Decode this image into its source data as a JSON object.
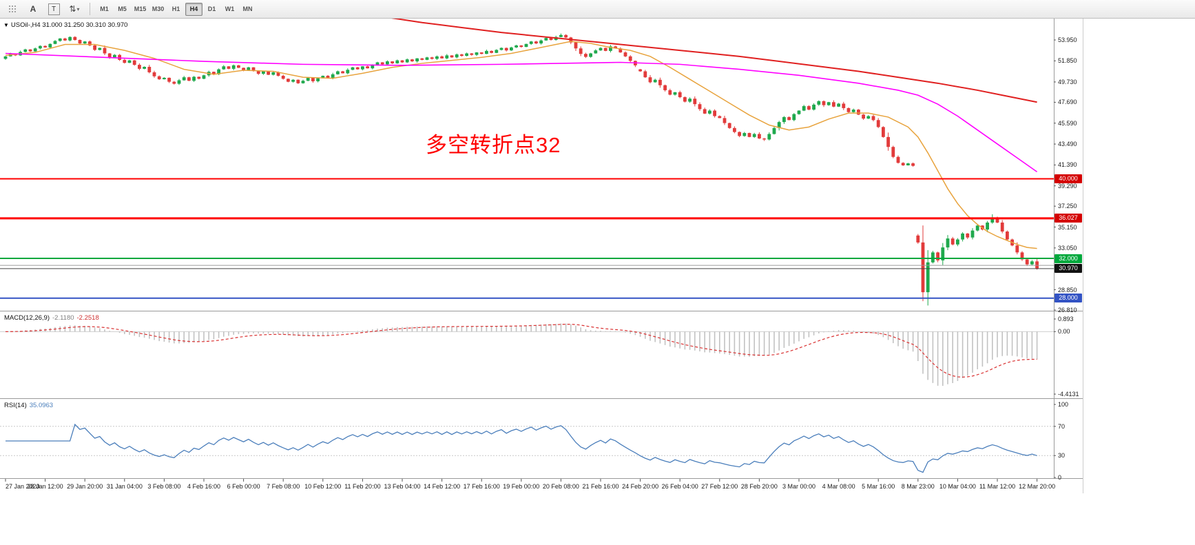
{
  "toolbar": {
    "font_tool_label": "A",
    "text_tool_label": "T",
    "cycle_tool_glyph": "⇅",
    "caret_glyph": "▾",
    "timeframes": [
      {
        "label": "M1",
        "active": false
      },
      {
        "label": "M5",
        "active": false
      },
      {
        "label": "M15",
        "active": false
      },
      {
        "label": "M30",
        "active": false
      },
      {
        "label": "H1",
        "active": false
      },
      {
        "label": "H4",
        "active": true
      },
      {
        "label": "D1",
        "active": false
      },
      {
        "label": "W1",
        "active": false
      },
      {
        "label": "MN",
        "active": false
      }
    ]
  },
  "chart": {
    "dropdown_glyph": "▼",
    "symbol_line": "USOil-,H4 31.000 31.250 30.310 30.970",
    "annotation": {
      "text": "多空转折点32",
      "color": "#ff0000"
    }
  },
  "indicators": {
    "macd": {
      "name": "MACD(12,26,9)",
      "value_main": "-2.1180",
      "value_signal": "-2.2518"
    },
    "rsi": {
      "name": "RSI(14)",
      "value": "35.0963"
    }
  },
  "chart_data": {
    "type": "candlestick",
    "symbol": "USOil",
    "timeframe": "H4",
    "colors": {
      "bull": "#1fa94d",
      "bear": "#e23b3b",
      "macd_hist": "#c2c2c2",
      "macd_signal": "#d93030",
      "rsi_line": "#4a7ebb"
    },
    "closes": [
      52.3,
      52.55,
      52.4,
      52.75,
      53.0,
      52.8,
      53.1,
      53.35,
      53.2,
      53.55,
      53.85,
      54.1,
      53.9,
      54.25,
      53.95,
      53.6,
      53.8,
      53.4,
      52.95,
      53.15,
      52.6,
      52.2,
      52.45,
      51.95,
      51.65,
      51.9,
      51.45,
      51.05,
      51.25,
      50.7,
      50.3,
      50.0,
      50.15,
      49.75,
      49.55,
      49.9,
      50.2,
      49.85,
      50.25,
      50.05,
      50.4,
      50.75,
      50.5,
      51.0,
      51.3,
      51.05,
      51.4,
      51.15,
      50.9,
      51.2,
      50.85,
      50.55,
      50.8,
      50.45,
      50.7,
      50.35,
      50.05,
      49.75,
      49.95,
      49.6,
      49.85,
      50.15,
      49.8,
      50.1,
      50.35,
      50.15,
      50.5,
      50.8,
      50.6,
      50.95,
      51.2,
      51.0,
      51.3,
      51.1,
      51.45,
      51.7,
      51.5,
      51.8,
      51.6,
      51.9,
      51.7,
      52.0,
      51.8,
      52.1,
      51.95,
      52.2,
      52.05,
      52.3,
      52.1,
      52.4,
      52.2,
      52.5,
      52.35,
      52.6,
      52.45,
      52.7,
      52.55,
      52.85,
      52.65,
      52.95,
      53.15,
      52.9,
      53.2,
      53.4,
      53.25,
      53.55,
      53.8,
      53.6,
      53.9,
      54.15,
      53.95,
      54.25,
      54.45,
      54.2,
      53.7,
      53.1,
      52.55,
      52.25,
      52.6,
      52.9,
      53.15,
      52.85,
      53.3,
      53.1,
      52.7,
      52.3,
      51.85,
      51.4,
      50.8,
      50.2,
      49.7,
      49.95,
      49.4,
      48.9,
      48.45,
      48.7,
      48.2,
      47.75,
      48.05,
      47.5,
      47.0,
      46.55,
      46.85,
      46.3,
      46.1,
      45.6,
      45.1,
      44.7,
      44.3,
      44.6,
      44.2,
      44.5,
      44.05,
      43.95,
      44.5,
      45.1,
      45.7,
      46.2,
      45.9,
      46.5,
      46.85,
      47.3,
      46.95,
      47.45,
      47.8,
      47.4,
      47.7,
      47.25,
      47.55,
      47.1,
      46.7,
      46.95,
      46.45,
      46.05,
      46.3,
      45.9,
      45.2,
      44.2,
      43.2,
      42.2,
      41.6,
      41.35,
      41.55,
      41.3,
      33.6,
      28.6,
      31.6,
      32.6,
      31.8,
      33.1,
      34.0,
      33.4,
      33.9,
      34.5,
      34.1,
      34.8,
      35.3,
      34.9,
      35.6,
      36.1,
      35.6,
      34.7,
      33.9,
      33.3,
      32.6,
      31.9,
      31.4,
      31.7,
      30.97
    ],
    "open_overrides": {
      "128": 51.0,
      "184": 34.3
    },
    "high_overrides": {
      "112": 54.6,
      "199": 36.43
    },
    "low_overrides": {
      "153": 43.8,
      "185": 27.7
    },
    "ma_lines": [
      {
        "name": "ma-fast-orange",
        "color": "#e8a33d",
        "width": 1.5,
        "points": [
          [
            0,
            52.4
          ],
          [
            6,
            52.7
          ],
          [
            12,
            53.5
          ],
          [
            18,
            53.5
          ],
          [
            24,
            52.9
          ],
          [
            30,
            52.1
          ],
          [
            36,
            51.0
          ],
          [
            42,
            50.5
          ],
          [
            48,
            50.9
          ],
          [
            54,
            50.8
          ],
          [
            60,
            50.2
          ],
          [
            66,
            50.1
          ],
          [
            72,
            50.6
          ],
          [
            78,
            51.2
          ],
          [
            84,
            51.6
          ],
          [
            90,
            51.9
          ],
          [
            96,
            52.2
          ],
          [
            102,
            52.6
          ],
          [
            108,
            53.2
          ],
          [
            114,
            53.8
          ],
          [
            118,
            53.6
          ],
          [
            122,
            53.2
          ],
          [
            126,
            52.9
          ],
          [
            130,
            52.3
          ],
          [
            134,
            51.2
          ],
          [
            138,
            50.0
          ],
          [
            142,
            48.8
          ],
          [
            146,
            47.6
          ],
          [
            150,
            46.4
          ],
          [
            154,
            45.4
          ],
          [
            158,
            44.9
          ],
          [
            162,
            45.2
          ],
          [
            166,
            46.0
          ],
          [
            170,
            46.6
          ],
          [
            174,
            46.6
          ],
          [
            178,
            46.2
          ],
          [
            182,
            45.2
          ],
          [
            184,
            44.2
          ],
          [
            186,
            42.6
          ],
          [
            188,
            40.8
          ],
          [
            190,
            39.0
          ],
          [
            192,
            37.5
          ],
          [
            194,
            36.3
          ],
          [
            196,
            35.4
          ],
          [
            198,
            34.7
          ],
          [
            200,
            34.2
          ],
          [
            202,
            33.8
          ],
          [
            204,
            33.4
          ],
          [
            206,
            33.1
          ],
          [
            208,
            33.0
          ]
        ]
      },
      {
        "name": "ma-mid-magenta",
        "color": "#ff00ff",
        "width": 1.6,
        "points": [
          [
            0,
            52.6
          ],
          [
            20,
            52.2
          ],
          [
            40,
            51.8
          ],
          [
            60,
            51.5
          ],
          [
            80,
            51.4
          ],
          [
            100,
            51.5
          ],
          [
            112,
            51.6
          ],
          [
            124,
            51.7
          ],
          [
            136,
            51.5
          ],
          [
            148,
            51.0
          ],
          [
            160,
            50.4
          ],
          [
            172,
            49.6
          ],
          [
            180,
            48.9
          ],
          [
            184,
            48.4
          ],
          [
            188,
            47.5
          ],
          [
            192,
            46.3
          ],
          [
            196,
            44.9
          ],
          [
            200,
            43.5
          ],
          [
            204,
            42.1
          ],
          [
            208,
            40.7
          ]
        ]
      },
      {
        "name": "ma-slow-red",
        "color": "#e02020",
        "width": 2,
        "points": [
          [
            66,
            57.4
          ],
          [
            76,
            56.3
          ],
          [
            84,
            55.7
          ],
          [
            92,
            55.2
          ],
          [
            100,
            54.7
          ],
          [
            108,
            54.3
          ],
          [
            116,
            53.9
          ],
          [
            124,
            53.5
          ],
          [
            132,
            53.1
          ],
          [
            140,
            52.7
          ],
          [
            148,
            52.3
          ],
          [
            156,
            51.8
          ],
          [
            164,
            51.3
          ],
          [
            172,
            50.8
          ],
          [
            180,
            50.2
          ],
          [
            188,
            49.6
          ],
          [
            196,
            48.9
          ],
          [
            202,
            48.3
          ],
          [
            208,
            47.7
          ]
        ]
      }
    ],
    "levels": [
      {
        "price": 40.0,
        "label": "40.000",
        "line": "#ff0000",
        "line_width": 2,
        "badge_bg": "#d40000"
      },
      {
        "price": 36.027,
        "label": "36.027",
        "line": "#ff0000",
        "line_width": 3,
        "badge_bg": "#d40000"
      },
      {
        "price": 32.0,
        "label": "32.000",
        "line": "#00a83c",
        "line_width": 2,
        "badge_bg": "#00a83c"
      },
      {
        "price": 28.0,
        "label": "28.000",
        "line": "#3353c4",
        "line_width": 2,
        "badge_bg": "#3353c4"
      }
    ],
    "gray_level": 31.3,
    "bid": {
      "price": 30.97,
      "label": "30.970",
      "badge_bg": "#111111"
    },
    "price_axis": [
      "53.950",
      "51.850",
      "49.730",
      "47.690",
      "45.590",
      "43.490",
      "41.390",
      "39.290",
      "37.250",
      "35.150",
      "33.050",
      "28.850",
      "26.810"
    ],
    "macd": {
      "fast": 12,
      "slow": 26,
      "signal": 9,
      "axis_labels": [
        "0.893",
        "0.00",
        "-4.4131"
      ]
    },
    "rsi": {
      "period": 14,
      "levels": [
        70,
        30
      ],
      "axis_labels": [
        "100",
        "70",
        "30",
        "0"
      ]
    },
    "time_labels": [
      "27 Jan 2020",
      "28 Jan 12:00",
      "29 Jan 20:00",
      "31 Jan 04:00",
      "3 Feb 08:00",
      "4 Feb 16:00",
      "6 Feb 00:00",
      "7 Feb 08:00",
      "10 Feb 12:00",
      "11 Feb 20:00",
      "13 Feb 04:00",
      "14 Feb 12:00",
      "17 Feb 16:00",
      "19 Feb 00:00",
      "20 Feb 08:00",
      "21 Feb 16:00",
      "24 Feb 20:00",
      "26 Feb 04:00",
      "27 Feb 12:00",
      "28 Feb 20:00",
      "3 Mar 00:00",
      "4 Mar 08:00",
      "5 Mar 16:00",
      "8 Mar 23:00",
      "10 Mar 04:00",
      "11 Mar 12:00",
      "12 Mar 20:00"
    ],
    "bars_per_label": 8
  }
}
